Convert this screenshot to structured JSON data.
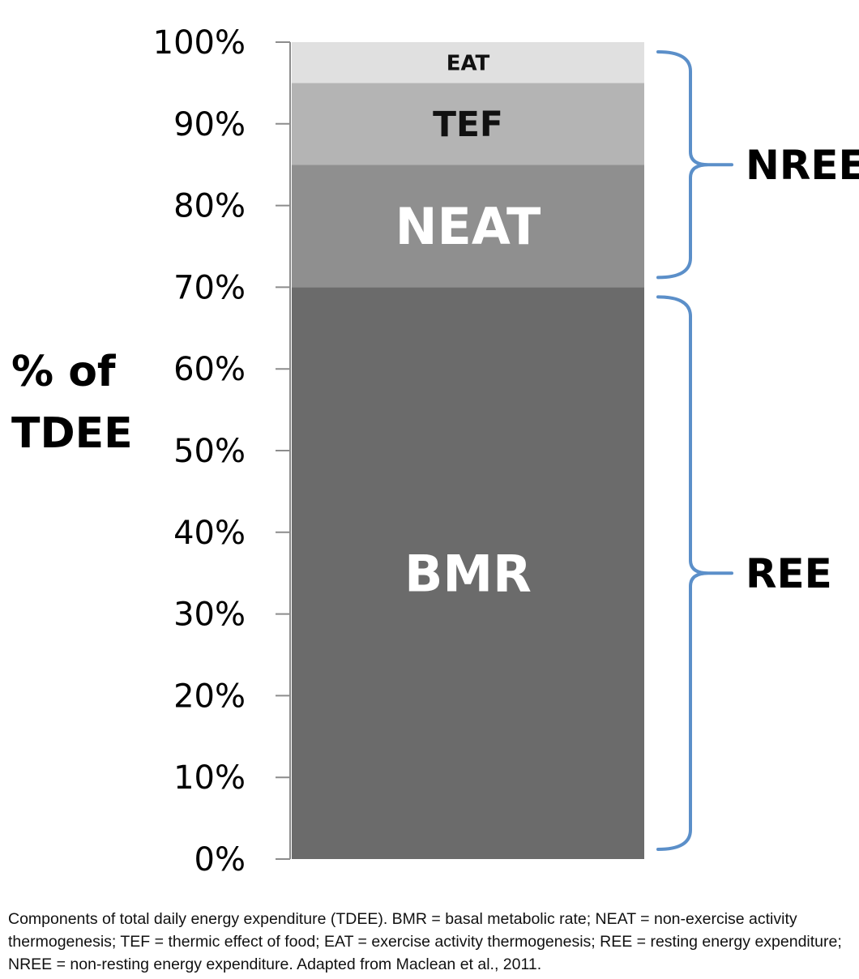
{
  "chart_data": {
    "type": "bar",
    "stacked": true,
    "categories": [
      ""
    ],
    "series": [
      {
        "name": "BMR",
        "values": [
          70
        ],
        "color": "#6b6b6b",
        "label_color": "#ffffff"
      },
      {
        "name": "NEAT",
        "values": [
          15
        ],
        "color": "#8f8f8f",
        "label_color": "#ffffff"
      },
      {
        "name": "TEF",
        "values": [
          10
        ],
        "color": "#b4b4b4",
        "label_color": "#111111"
      },
      {
        "name": "EAT",
        "values": [
          5
        ],
        "color": "#e0e0e0",
        "label_color": "#111111"
      }
    ],
    "ylim": [
      0,
      100
    ],
    "yticks": [
      "0%",
      "10%",
      "20%",
      "30%",
      "40%",
      "50%",
      "60%",
      "70%",
      "80%",
      "90%",
      "100%"
    ],
    "ylabel_lines": [
      "% of",
      "TDEE"
    ],
    "grid": false,
    "braces": [
      {
        "label": "NREE",
        "from": 70,
        "to": 100,
        "color": "#5b8fc9"
      },
      {
        "label": "REE",
        "from": 0,
        "to": 70,
        "color": "#5b8fc9"
      }
    ]
  },
  "caption": "Components of total daily energy expenditure (TDEE). BMR = basal metabolic rate; NEAT = non-exercise activity thermogenesis; TEF = thermic effect of food; EAT = exercise activity thermogenesis; REE = resting energy expenditure; NREE = non-resting energy expenditure. Adapted from Maclean et al., 2011."
}
